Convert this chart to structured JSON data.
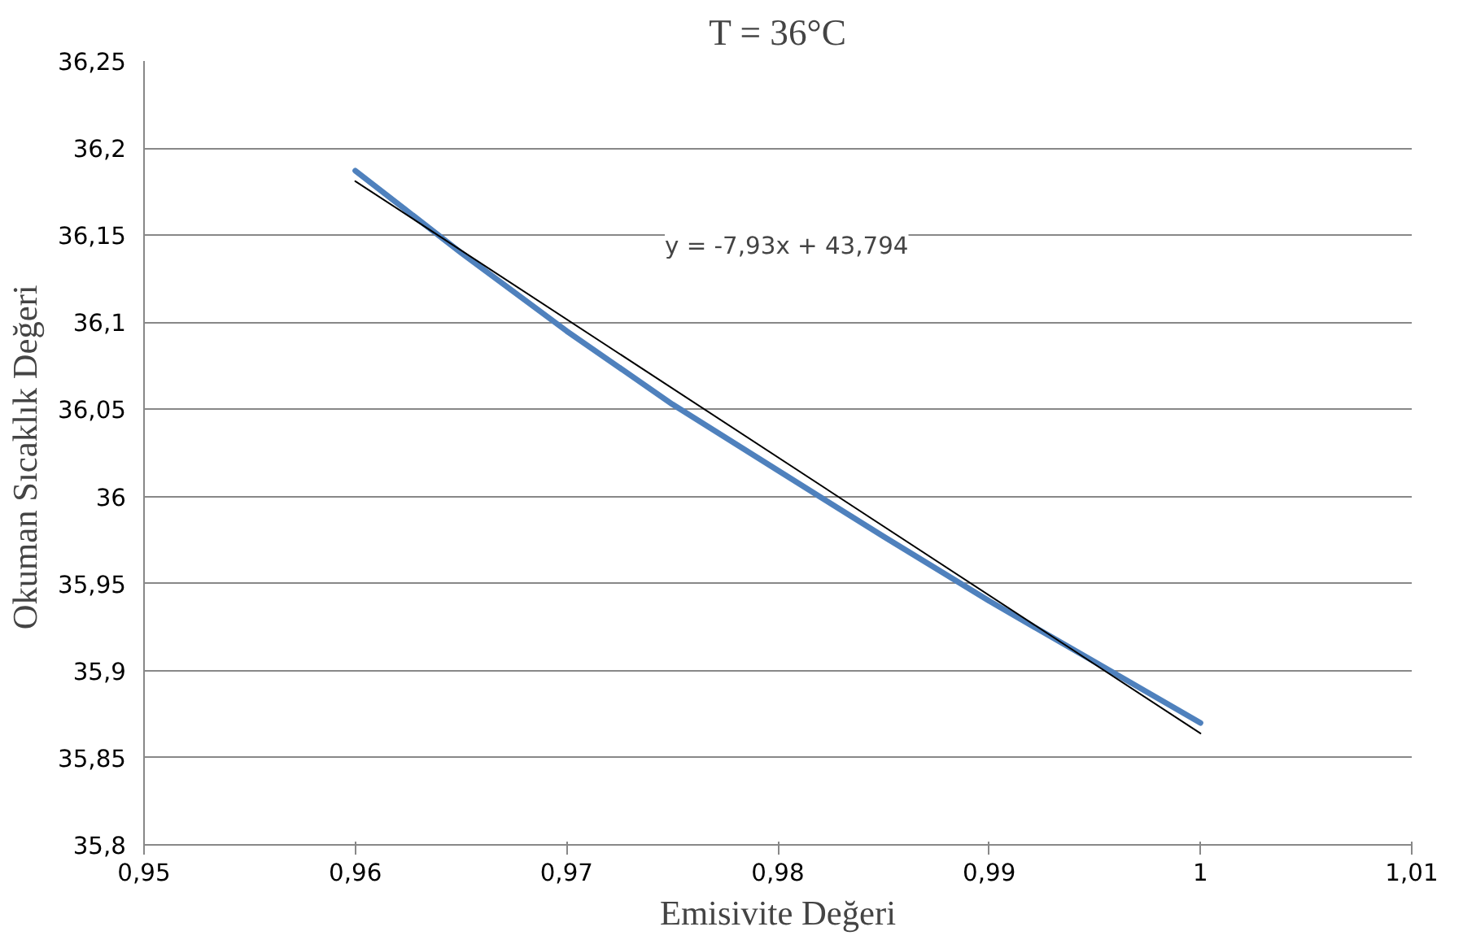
{
  "chart_data": {
    "type": "line",
    "title": "T = 36°C",
    "xlabel": "Emisivite Değeri",
    "ylabel": "Okuman  Sıcaklık Değeri",
    "series": [
      {
        "color": "#4f81bd",
        "x": [
          0.96,
          0.965,
          0.97,
          0.975,
          0.98,
          0.985,
          0.99,
          0.995,
          1.0
        ],
        "values": [
          36.187,
          36.14,
          36.095,
          36.053,
          36.015,
          35.977,
          35.94,
          35.905,
          35.87
        ]
      },
      {
        "color": "#000000",
        "x": [
          0.96,
          1.0
        ],
        "values": [
          36.181,
          35.864
        ]
      }
    ],
    "annotations": [
      "y = -7,93x + 43,794"
    ],
    "xlim": [
      0.95,
      1.01
    ],
    "ylim": [
      35.8,
      36.25
    ],
    "xticks": [
      {
        "value": 0.95,
        "label": "0,95"
      },
      {
        "value": 0.96,
        "label": "0,96"
      },
      {
        "value": 0.97,
        "label": "0,97"
      },
      {
        "value": 0.98,
        "label": "0,98"
      },
      {
        "value": 0.99,
        "label": "0,99"
      },
      {
        "value": 1,
        "label": "1"
      },
      {
        "value": 1.01,
        "label": "1,01"
      }
    ],
    "yticks": [
      {
        "value": 35.8,
        "label": "35,8"
      },
      {
        "value": 35.85,
        "label": "35,85"
      },
      {
        "value": 35.9,
        "label": "35,9"
      },
      {
        "value": 35.95,
        "label": "35,95"
      },
      {
        "value": 36,
        "label": "36"
      },
      {
        "value": 36.05,
        "label": "36,05"
      },
      {
        "value": 36.1,
        "label": "36,1"
      },
      {
        "value": 36.15,
        "label": "36,15"
      },
      {
        "value": 36.2,
        "label": "36,2"
      },
      {
        "value": 36.25,
        "label": "36,25"
      }
    ],
    "grid": "y",
    "marker": "none",
    "line_style": "solid"
  }
}
